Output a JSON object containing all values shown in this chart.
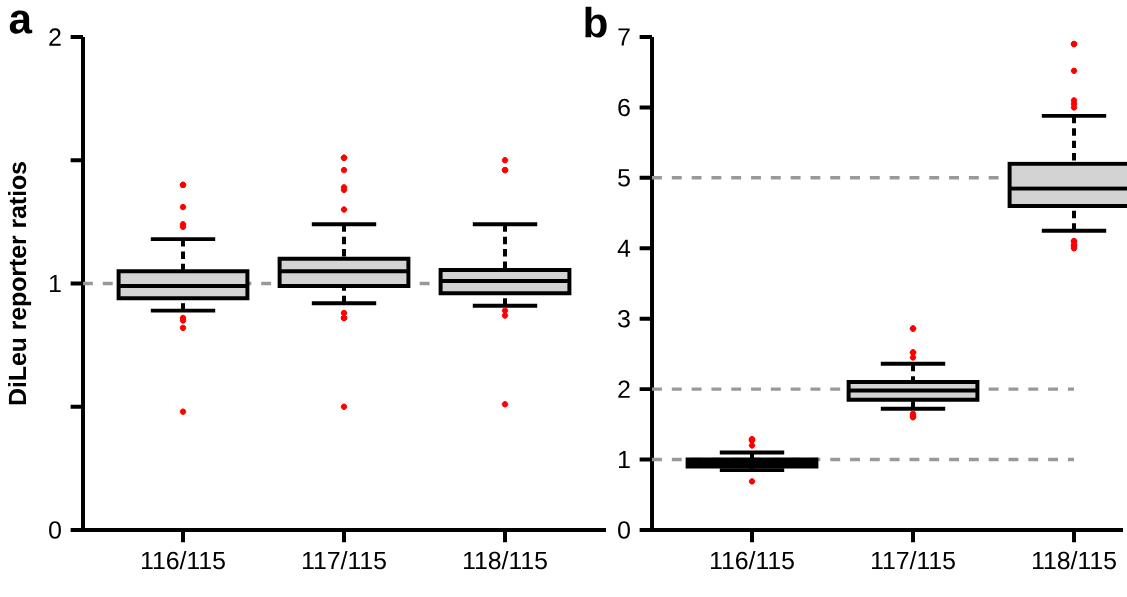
{
  "chart_data": [
    {
      "type": "box",
      "title": "a",
      "ylabel": "DiLeu reporter ratios",
      "categories": [
        "116/115",
        "117/115",
        "118/115"
      ],
      "color": "#d3d3d3",
      "ylim": [
        0,
        2
      ],
      "yticks": [
        0,
        {
          "value": 0.5,
          "label": null
        },
        1,
        {
          "value": 1.5,
          "label": null
        },
        2
      ],
      "ref_lines": [
        {
          "axis": "y",
          "value": 1,
          "color": "#999999",
          "line_style": "dashed"
        }
      ],
      "boxes": [
        {
          "low": 0.89,
          "q1": 0.94,
          "median": 0.99,
          "q3": 1.05,
          "high": 1.18,
          "outliers": [
            1.4,
            1.4,
            1.31,
            1.24,
            1.23,
            0.86,
            0.85,
            0.82,
            0.48
          ]
        },
        {
          "low": 0.92,
          "q1": 0.99,
          "median": 1.05,
          "q3": 1.1,
          "high": 1.24,
          "outliers": [
            1.51,
            1.51,
            1.46,
            1.39,
            1.38,
            1.3,
            0.88,
            0.86,
            0.86,
            0.5
          ]
        },
        {
          "low": 0.91,
          "q1": 0.96,
          "median": 1.01,
          "q3": 1.055,
          "high": 1.24,
          "outliers": [
            1.5,
            1.46,
            1.46,
            0.89,
            0.87,
            0.51
          ]
        }
      ]
    },
    {
      "type": "box",
      "title": "b",
      "categories": [
        "116/115",
        "117/115",
        "118/115"
      ],
      "color": "#d3d3d3",
      "ylim": [
        0,
        7
      ],
      "yticks": [
        0,
        1,
        2,
        3,
        4,
        5,
        6,
        7
      ],
      "ref_lines": [
        {
          "axis": "y",
          "value": 1,
          "color": "#999999",
          "line_style": "dashed"
        },
        {
          "axis": "y",
          "value": 2,
          "color": "#999999",
          "line_style": "dashed"
        },
        {
          "axis": "y",
          "value": 5,
          "color": "#999999",
          "line_style": "dashed"
        }
      ],
      "boxes": [
        {
          "low": 0.85,
          "q1": 0.9,
          "median": 0.95,
          "q3": 1.0,
          "high": 1.1,
          "outliers": [
            1.29,
            1.28,
            1.27,
            1.2,
            0.69
          ]
        },
        {
          "low": 1.72,
          "q1": 1.85,
          "median": 1.98,
          "q3": 2.1,
          "high": 2.36,
          "outliers": [
            2.86,
            2.86,
            2.52,
            2.52,
            2.45,
            1.65,
            1.62,
            1.6
          ]
        },
        {
          "low": 4.25,
          "q1": 4.6,
          "median": 4.85,
          "q3": 5.2,
          "high": 5.88,
          "outliers": [
            6.9,
            6.9,
            6.52,
            6.1,
            6.05,
            6.0,
            4.1,
            4.1,
            4.05,
            4.03,
            4.0
          ]
        }
      ]
    }
  ]
}
